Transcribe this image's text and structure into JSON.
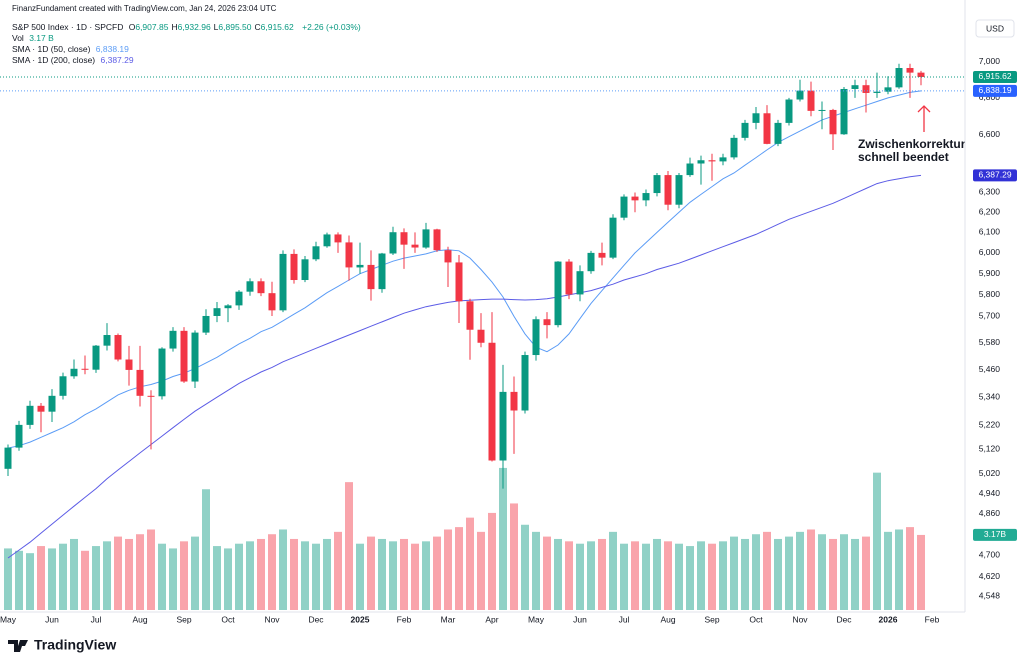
{
  "header": {
    "credit": "FinanzFundament created with TradingView.com, Jan 24, 2026 23:04 UTC",
    "symbol": "S&P 500 Index · 1D · SPCFD",
    "ohlc": [
      {
        "key": "O",
        "value": "6,907.85"
      },
      {
        "key": "H",
        "value": "6,932.96"
      },
      {
        "key": "L",
        "value": "6,895.50"
      },
      {
        "key": "C",
        "value": "6,915.62"
      }
    ],
    "change": "+2.26 (+0.03%)",
    "volume_key": "Vol",
    "volume_value": "3.17 B"
  },
  "currency": "USD",
  "logo": "TradingView",
  "annotation": [
    "Zwischenkorrektur",
    "schnell beendet"
  ],
  "chart_data": {
    "type": "candlestick",
    "log_scale": true,
    "grid": false,
    "up_color": "#089981",
    "down_color": "#f23645",
    "ylim": [
      4497,
      7253
    ],
    "yticks": [
      {
        "value": 7000,
        "label": "7,000"
      },
      {
        "value": 6800,
        "label": "6,800"
      },
      {
        "value": 6600,
        "label": "6,600"
      },
      {
        "value": 6300,
        "label": "6,300"
      },
      {
        "value": 6200,
        "label": "6,200"
      },
      {
        "value": 6100,
        "label": "6,100"
      },
      {
        "value": 6000,
        "label": "6,000"
      },
      {
        "value": 5900,
        "label": "5,900"
      },
      {
        "value": 5800,
        "label": "5,800"
      },
      {
        "value": 5700,
        "label": "5,700"
      },
      {
        "value": 5580,
        "label": "5,580"
      },
      {
        "value": 5460,
        "label": "5,460"
      },
      {
        "value": 5340,
        "label": "5,340"
      },
      {
        "value": 5220,
        "label": "5,220"
      },
      {
        "value": 5120,
        "label": "5,120"
      },
      {
        "value": 5020,
        "label": "5,020"
      },
      {
        "value": 4940,
        "label": "4,940"
      },
      {
        "value": 4860,
        "label": "4,860"
      },
      {
        "value": 4700,
        "label": "4,700"
      },
      {
        "value": 4620,
        "label": "4,620"
      },
      {
        "value": 4548,
        "label": "4,548"
      }
    ],
    "categories": [
      "May",
      null,
      null,
      null,
      "Jun",
      null,
      null,
      null,
      "Jul",
      null,
      null,
      null,
      "Aug",
      null,
      null,
      null,
      "Sep",
      null,
      null,
      null,
      "Oct",
      null,
      null,
      null,
      "Nov",
      null,
      null,
      null,
      "Dec",
      null,
      null,
      null,
      "2025",
      null,
      null,
      null,
      "Feb",
      null,
      null,
      null,
      "Mar",
      null,
      null,
      null,
      "Apr",
      null,
      null,
      null,
      "May",
      null,
      null,
      null,
      "Jun",
      null,
      null,
      null,
      "Jul",
      null,
      null,
      null,
      "Aug",
      null,
      null,
      null,
      "Sep",
      null,
      null,
      null,
      "Oct",
      null,
      null,
      null,
      "Nov",
      null,
      null,
      null,
      "Dec",
      null,
      null,
      null,
      "2026",
      null,
      null,
      null,
      "Feb"
    ],
    "open": [
      5040,
      5127,
      5222,
      5303,
      5278,
      5346,
      5431,
      5464,
      5460,
      5567,
      5615,
      5505,
      5459,
      5346,
      5344,
      5554,
      5634,
      5408,
      5626,
      5702,
      5738,
      5751,
      5815,
      5864,
      5808,
      5728,
      5995,
      5870,
      5969,
      6032,
      6090,
      6051,
      5930,
      5942,
      5827,
      5997,
      6101,
      6040,
      6026,
      6115,
      6013,
      5954,
      5770,
      5639,
      5580,
      5074,
      5363,
      5283,
      5525,
      5687,
      5660,
      5958,
      5802,
      5912,
      6000,
      5977,
      6173,
      6279,
      6260,
      6297,
      6389,
      6238,
      6389,
      6449,
      6466,
      6460,
      6481,
      6584,
      6664,
      6716,
      6552,
      6664,
      6791,
      6840,
      6729,
      6734,
      6603,
      6849,
      6870,
      6827,
      6834,
      6858,
      6966,
      6940,
      null
    ],
    "high": [
      5140,
      5239,
      5325,
      5315,
      5375,
      5447,
      5505,
      5523,
      5570,
      5669,
      5622,
      5566,
      5566,
      5370,
      5560,
      5651,
      5651,
      5636,
      5733,
      5767,
      5757,
      5822,
      5878,
      5878,
      5862,
      6012,
      6017,
      5985,
      6054,
      6099,
      6100,
      6085,
      6050,
      6012,
      6000,
      6128,
      6120,
      6100,
      6147,
      6118,
      6030,
      5990,
      5782,
      5715,
      5720,
      5481,
      5430,
      5540,
      5700,
      5720,
      5960,
      5970,
      5940,
      6010,
      6050,
      6190,
      6290,
      6300,
      6315,
      6400,
      6410,
      6400,
      6480,
      6490,
      6500,
      6500,
      6600,
      6680,
      6750,
      6760,
      6680,
      6800,
      6900,
      6890,
      6780,
      6740,
      6860,
      6900,
      6900,
      6940,
      6920,
      6990,
      6990,
      6950,
      null
    ],
    "low": [
      5011,
      5114,
      5205,
      5191,
      5234,
      5330,
      5420,
      5440,
      5446,
      5545,
      5497,
      5390,
      5300,
      5120,
      5330,
      5540,
      5402,
      5380,
      5615,
      5674,
      5674,
      5730,
      5796,
      5794,
      5702,
      5720,
      5853,
      5860,
      5960,
      6025,
      6000,
      5867,
      5900,
      5773,
      5810,
      5990,
      5923,
      6000,
      6020,
      6005,
      5837,
      5670,
      5504,
      5560,
      5070,
      4960,
      5101,
      5270,
      5500,
      5600,
      5650,
      5780,
      5770,
      5900,
      5940,
      5970,
      6160,
      6200,
      6230,
      6280,
      6210,
      6220,
      6380,
      6340,
      6360,
      6440,
      6470,
      6570,
      6630,
      6550,
      6540,
      6650,
      6780,
      6700,
      6630,
      6520,
      6600,
      6800,
      6720,
      6800,
      6820,
      6850,
      6800,
      6870,
      null
    ],
    "close": [
      5127,
      5222,
      5303,
      5278,
      5346,
      5431,
      5464,
      5460,
      5567,
      5615,
      5505,
      5459,
      5346,
      5344,
      5554,
      5634,
      5408,
      5626,
      5702,
      5738,
      5751,
      5815,
      5864,
      5808,
      5728,
      5995,
      5870,
      5969,
      6032,
      6090,
      6051,
      5930,
      5942,
      5827,
      5997,
      6101,
      6040,
      6026,
      6115,
      6013,
      5954,
      5770,
      5639,
      5580,
      5074,
      5363,
      5283,
      5525,
      5687,
      5660,
      5958,
      5802,
      5912,
      6000,
      5977,
      6173,
      6279,
      6260,
      6297,
      6389,
      6238,
      6389,
      6449,
      6466,
      6460,
      6481,
      6584,
      6664,
      6716,
      6552,
      6664,
      6791,
      6840,
      6729,
      6734,
      6603,
      6849,
      6870,
      6827,
      6834,
      6858,
      6966,
      6940,
      6915.62,
      null
    ],
    "last_price": {
      "value": 6915.62,
      "label": "6,915.62"
    },
    "volume": [
      2.6,
      2.5,
      2.4,
      2.7,
      2.6,
      2.8,
      3.0,
      2.5,
      2.7,
      2.9,
      3.1,
      3.0,
      3.2,
      3.4,
      2.8,
      2.6,
      2.9,
      3.1,
      5.1,
      2.7,
      2.6,
      2.8,
      2.9,
      3.0,
      3.2,
      3.4,
      3.0,
      2.9,
      2.8,
      3.0,
      3.3,
      5.4,
      2.8,
      3.1,
      3.0,
      2.9,
      3.0,
      2.8,
      2.9,
      3.1,
      3.4,
      3.5,
      3.9,
      3.3,
      4.1,
      6.0,
      4.5,
      3.6,
      3.3,
      3.1,
      3.0,
      2.9,
      2.8,
      2.9,
      3.0,
      3.3,
      2.8,
      2.9,
      2.8,
      3.0,
      2.9,
      2.8,
      2.7,
      2.9,
      2.8,
      2.9,
      3.1,
      3.0,
      3.2,
      3.3,
      3.0,
      3.1,
      3.3,
      3.4,
      3.2,
      3.0,
      3.2,
      3.0,
      3.1,
      5.8,
      3.3,
      3.4,
      3.5,
      3.17,
      null
    ],
    "volume_ylim": [
      0,
      25
    ],
    "volume_label": "3.17B",
    "series": [
      {
        "name": "SMA · 1D (50, close)",
        "color": "#5b9cf6",
        "value_label": "6,838.19",
        "values": [
          5125,
          5135,
          5150,
          5170,
          5190,
          5210,
          5235,
          5265,
          5290,
          5320,
          5350,
          5370,
          5385,
          5395,
          5410,
          5430,
          5445,
          5465,
          5490,
          5515,
          5545,
          5575,
          5600,
          5630,
          5650,
          5680,
          5710,
          5740,
          5775,
          5810,
          5840,
          5870,
          5900,
          5920,
          5940,
          5960,
          5975,
          5985,
          5995,
          6010,
          6015,
          6010,
          5975,
          5920,
          5860,
          5790,
          5700,
          5620,
          5560,
          5540,
          5570,
          5620,
          5690,
          5760,
          5820,
          5880,
          5940,
          6000,
          6050,
          6100,
          6150,
          6200,
          6250,
          6290,
          6330,
          6370,
          6400,
          6440,
          6480,
          6520,
          6560,
          6590,
          6620,
          6650,
          6680,
          6700,
          6720,
          6740,
          6760,
          6780,
          6800,
          6815,
          6830,
          6838.19,
          null
        ]
      },
      {
        "name": "SMA · 1D (200, close)",
        "color": "#5c5ce6",
        "value_label": "6,387.29",
        "values": [
          4690,
          4720,
          4750,
          4785,
          4820,
          4855,
          4890,
          4925,
          4960,
          5000,
          5035,
          5070,
          5105,
          5140,
          5175,
          5210,
          5245,
          5280,
          5310,
          5340,
          5370,
          5400,
          5425,
          5450,
          5470,
          5495,
          5515,
          5535,
          5555,
          5575,
          5595,
          5615,
          5635,
          5655,
          5675,
          5695,
          5715,
          5730,
          5745,
          5755,
          5765,
          5772,
          5775,
          5778,
          5780,
          5780,
          5778,
          5776,
          5778,
          5782,
          5790,
          5800,
          5810,
          5820,
          5835,
          5850,
          5870,
          5885,
          5900,
          5920,
          5935,
          5950,
          5970,
          5990,
          6010,
          6030,
          6050,
          6070,
          6090,
          6115,
          6140,
          6165,
          6185,
          6205,
          6225,
          6245,
          6270,
          6295,
          6320,
          6345,
          6360,
          6370,
          6380,
          6387.29,
          null
        ]
      }
    ]
  }
}
